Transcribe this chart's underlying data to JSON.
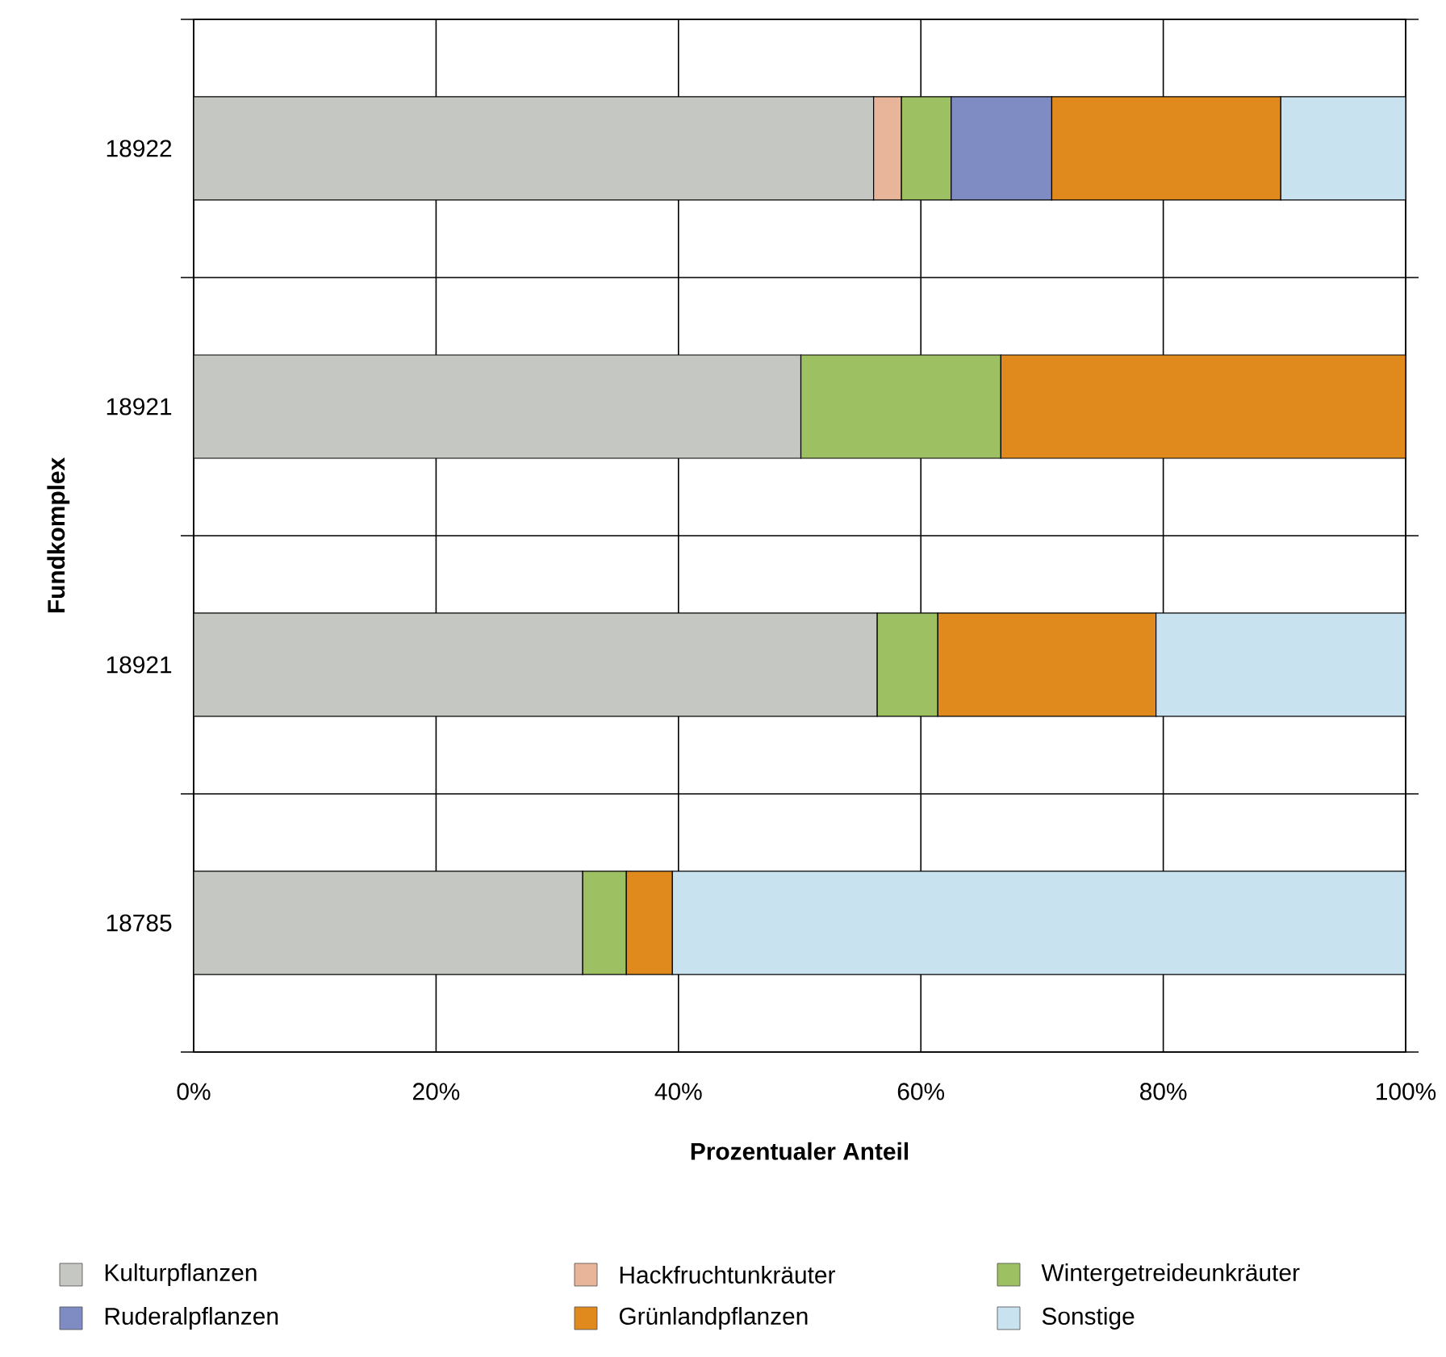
{
  "chart_data": {
    "type": "bar",
    "orientation": "horizontal",
    "stacked": true,
    "xlabel": "Prozentualer Anteil",
    "ylabel": "Fundkomplex",
    "categories": [
      "18922",
      "18921",
      "18921",
      "18785"
    ],
    "series": [
      {
        "name": "Kulturpflanzen",
        "color": "#c4c7c2",
        "values": [
          56.1,
          50.1,
          56.4,
          32.1
        ]
      },
      {
        "name": "Hackfruchtunkräuter",
        "color": "#e8b49a",
        "values": [
          2.3,
          null,
          null,
          null
        ]
      },
      {
        "name": "Wintergetreideunkräuter",
        "color": "#9cc062",
        "values": [
          4.1,
          16.5,
          5.0,
          3.6
        ]
      },
      {
        "name": "Ruderalpflanzen",
        "color": "#7f8cc4",
        "values": [
          8.3,
          null,
          null,
          null
        ]
      },
      {
        "name": "Grünlandpflanzen",
        "color": "#e08a1e",
        "values": [
          18.9,
          33.4,
          18.0,
          3.8
        ]
      },
      {
        "name": "Sonstige",
        "color": "#c9e2f0",
        "values": [
          10.3,
          null,
          20.6,
          60.5
        ]
      }
    ],
    "xlim": [
      0,
      100
    ],
    "xticks": [
      {
        "value": 0,
        "label": "0%"
      },
      {
        "value": 20,
        "label": "20%"
      },
      {
        "value": 40,
        "label": "40%"
      },
      {
        "value": 60,
        "label": "60%"
      },
      {
        "value": 80,
        "label": "80%"
      },
      {
        "value": 100,
        "label": "100%"
      }
    ],
    "grid": true,
    "legend": "bottom"
  }
}
